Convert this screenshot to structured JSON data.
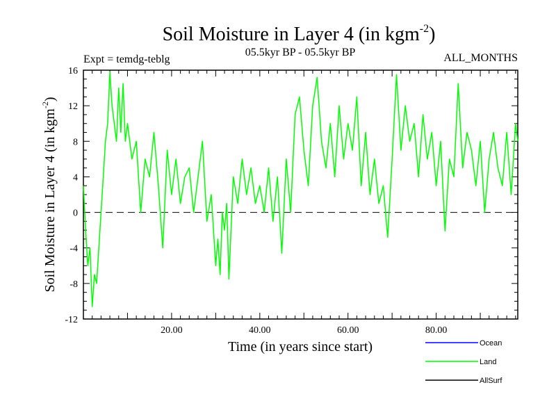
{
  "chart_data": {
    "type": "line",
    "title": "Soil Moisture in Layer 4 (in kgm",
    "title_sup": "-2",
    "title_close": ")",
    "subtitle_left": "Expt = temdg-teblg",
    "subtitle_center": "05.5kyr BP - 05.5kyr BP",
    "subtitle_right": "ALL_MONTHS",
    "xlabel": "Time (in years since start)",
    "ylabel": "Soil Moisture in Layer 4 (in kgm",
    "ylabel_sup": "-2",
    "ylabel_close": ")",
    "xlim": [
      0,
      98.5
    ],
    "ylim": [
      -12,
      16
    ],
    "x_ticks": [
      {
        "value": 20,
        "label": "20.00"
      },
      {
        "value": 40,
        "label": "40.00"
      },
      {
        "value": 60,
        "label": "60.00"
      },
      {
        "value": 80,
        "label": "80.00"
      }
    ],
    "y_ticks": [
      {
        "value": -12,
        "label": "-12"
      },
      {
        "value": -8,
        "label": "-8"
      },
      {
        "value": -4,
        "label": "-4"
      },
      {
        "value": 0,
        "label": "0"
      },
      {
        "value": 4,
        "label": "4"
      },
      {
        "value": 8,
        "label": "8"
      },
      {
        "value": 12,
        "label": "12"
      },
      {
        "value": 16,
        "label": "16"
      }
    ],
    "reference_line": {
      "y": 0,
      "style": "dashed"
    },
    "legend": [
      {
        "name": "Ocean",
        "color": "#0000ff"
      },
      {
        "name": "Land",
        "color": "#00ff00"
      },
      {
        "name": "AllSurf",
        "color": "#000000"
      }
    ],
    "series": [
      {
        "name": "Land",
        "color": "#00ff00",
        "x": [
          0,
          0.5,
          1,
          1.5,
          2,
          2.5,
          3,
          3.5,
          4,
          4.5,
          5,
          5.5,
          6,
          6.5,
          7,
          7.5,
          8,
          8.5,
          9,
          9.5,
          10,
          11,
          12,
          13,
          14,
          15,
          16,
          17,
          18,
          19,
          20,
          21,
          22,
          23,
          24,
          25,
          26,
          27,
          28,
          29,
          30,
          30.5,
          31,
          31.5,
          32,
          32.5,
          33,
          34,
          35,
          36,
          37,
          38,
          39,
          40,
          41,
          42,
          43,
          44,
          45,
          46,
          47,
          48,
          49,
          50,
          51,
          52,
          53,
          54,
          55,
          56,
          57,
          58,
          59,
          60,
          61,
          62,
          63,
          64,
          65,
          66,
          67,
          68,
          69,
          70,
          71,
          72,
          73,
          74,
          75,
          76,
          77,
          78,
          79,
          80,
          81,
          82,
          83,
          84,
          85,
          86,
          87,
          88,
          89,
          90,
          91,
          92,
          93,
          94,
          95,
          96,
          97,
          98,
          98.5
        ],
        "values": [
          3,
          -2,
          -6,
          -4,
          -10.6,
          -7,
          -8,
          -4,
          0,
          4,
          8,
          10,
          15.8,
          12,
          10,
          8,
          14,
          9,
          14.5,
          8,
          10,
          6,
          8,
          0,
          6,
          4,
          9,
          3,
          -4,
          7,
          2,
          6,
          1,
          4,
          5,
          0,
          4,
          8,
          -1,
          2,
          -6,
          -3,
          -7,
          0,
          -2,
          1,
          -7.5,
          4,
          1,
          6,
          2,
          5,
          1,
          3,
          0,
          5,
          -1,
          4,
          -4.6,
          6,
          0,
          11,
          13,
          7,
          3,
          12,
          15.2,
          8,
          5,
          10,
          4,
          12,
          6,
          10,
          7,
          13,
          3,
          9,
          2,
          6,
          1,
          3,
          -2.8,
          6,
          15.5,
          7,
          12,
          8,
          10,
          4,
          11,
          6,
          9,
          3,
          8,
          -2.1,
          6,
          4,
          14.5,
          5,
          9,
          7,
          3,
          8,
          0,
          6,
          9,
          5,
          3,
          9,
          2,
          10,
          8
        ]
      }
    ]
  }
}
